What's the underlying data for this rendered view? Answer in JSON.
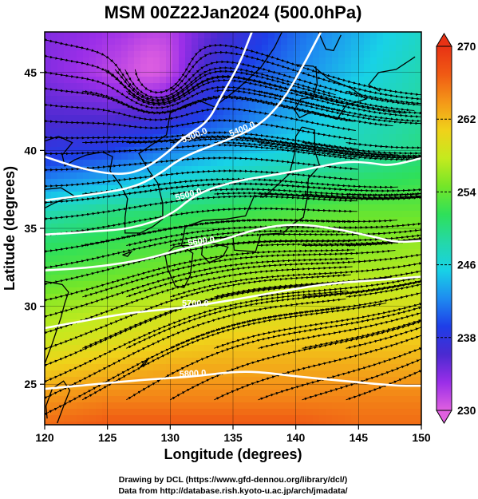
{
  "chart_data": {
    "type": "heatmap",
    "title": "MSM 00Z22Jan2024 (500.0hPa)",
    "xlabel": "Longitude (degrees)",
    "ylabel": "Latitude  (degrees)",
    "xlim": [
      120,
      150
    ],
    "ylim": [
      22.4,
      47.6
    ],
    "x_ticks": [
      120,
      125,
      130,
      135,
      140,
      145,
      150
    ],
    "x_tick_labels": [
      "120",
      "125",
      "130",
      "135",
      "140",
      "145",
      "150"
    ],
    "y_ticks": [
      25,
      30,
      35,
      40,
      45
    ],
    "y_tick_labels": [
      "25",
      "30",
      "35",
      "40",
      "45"
    ],
    "grid": true,
    "colorbar": {
      "min": 230,
      "max": 270,
      "tick_values": [
        230,
        238,
        246,
        254,
        262,
        270
      ],
      "tick_labels": [
        "230",
        "238",
        "246",
        "254",
        "262",
        "270"
      ],
      "placement": "right",
      "colors": [
        "#e060e0",
        "#9a2ee8",
        "#4a2ad0",
        "#1e3ee8",
        "#1e8cf0",
        "#18d2e6",
        "#24d8a8",
        "#2ee05a",
        "#74e628",
        "#c4ea1e",
        "#f0d21a",
        "#f49818",
        "#f05a14",
        "#e83214"
      ]
    },
    "temperature_field_K": {
      "lon": [
        120,
        125,
        130,
        135,
        140,
        145,
        150
      ],
      "lat": [
        47.5,
        45,
        42,
        40,
        38,
        36,
        34,
        32,
        30,
        28,
        26,
        24,
        22.5
      ],
      "values": [
        [
          234,
          233,
          233,
          237,
          241,
          244,
          247
        ],
        [
          234,
          232,
          234,
          239,
          242,
          245,
          248
        ],
        [
          236,
          236,
          238,
          241,
          244,
          247,
          249
        ],
        [
          238,
          239,
          242,
          244,
          246,
          248,
          250
        ],
        [
          242,
          244,
          246,
          248,
          250,
          251,
          252
        ],
        [
          248,
          250,
          251,
          252,
          253,
          254,
          254
        ],
        [
          251,
          252,
          253,
          254,
          255,
          255,
          256
        ],
        [
          253,
          254,
          255,
          256,
          257,
          257,
          257
        ],
        [
          256,
          257,
          258,
          258,
          259,
          259,
          259
        ],
        [
          258,
          259,
          260,
          261,
          261,
          261,
          261
        ],
        [
          261,
          262,
          263,
          263,
          263,
          263,
          263
        ],
        [
          264,
          265,
          265,
          265,
          265,
          265,
          265
        ],
        [
          266,
          267,
          267,
          267,
          267,
          266,
          266
        ]
      ]
    },
    "height_contours": [
      {
        "label": "5300.0",
        "points": [
          [
            120,
            39.6
          ],
          [
            123,
            38.8
          ],
          [
            126,
            38.4
          ],
          [
            128,
            38.8
          ],
          [
            130,
            40.0
          ],
          [
            131,
            40.8
          ],
          [
            133,
            41.8
          ],
          [
            134,
            43.4
          ],
          [
            135.5,
            45.5
          ],
          [
            136.5,
            47.6
          ]
        ]
      },
      {
        "label": "5400.0",
        "points": [
          [
            120,
            36.8
          ],
          [
            124,
            37.2
          ],
          [
            127,
            37.6
          ],
          [
            129,
            38.4
          ],
          [
            131,
            39.6
          ],
          [
            134,
            40.5
          ],
          [
            137,
            41.5
          ],
          [
            139,
            43.2
          ],
          [
            140.5,
            45.3
          ],
          [
            142,
            47.6
          ]
        ]
      },
      {
        "label": "5500.0",
        "points": [
          [
            120,
            34.6
          ],
          [
            124,
            34.8
          ],
          [
            127,
            35.0
          ],
          [
            130,
            35.8
          ],
          [
            132,
            37.2
          ],
          [
            135,
            38.0
          ],
          [
            138,
            38.4
          ],
          [
            141,
            38.8
          ],
          [
            144,
            39.3
          ],
          [
            146,
            39.2
          ],
          [
            147.5,
            39.0
          ],
          [
            150,
            39.5
          ]
        ]
      },
      {
        "label": "5600.0",
        "points": [
          [
            120,
            32.3
          ],
          [
            124,
            32.5
          ],
          [
            128,
            33.0
          ],
          [
            131,
            33.7
          ],
          [
            134,
            34.2
          ],
          [
            137,
            35.0
          ],
          [
            140,
            35.3
          ],
          [
            143,
            35.0
          ],
          [
            146,
            34.5
          ],
          [
            148,
            34.1
          ],
          [
            150,
            34.2
          ]
        ]
      },
      {
        "label": "5700.0",
        "points": [
          [
            120,
            28.6
          ],
          [
            124,
            29.2
          ],
          [
            127,
            29.6
          ],
          [
            131,
            29.9
          ],
          [
            135,
            30.4
          ],
          [
            139,
            31.0
          ],
          [
            143,
            31.5
          ],
          [
            147,
            31.7
          ],
          [
            150,
            31.9
          ]
        ]
      },
      {
        "label": "5800.0",
        "points": [
          [
            120,
            24.7
          ],
          [
            124,
            25.0
          ],
          [
            128,
            25.3
          ],
          [
            132,
            25.5
          ],
          [
            136,
            25.9
          ],
          [
            140,
            25.5
          ],
          [
            144,
            25.2
          ],
          [
            148,
            24.9
          ],
          [
            150,
            24.9
          ]
        ]
      }
    ],
    "contour_label_positions": [
      {
        "label": "5300.0",
        "lon": 132.0,
        "lat": 40.8,
        "angle": -22
      },
      {
        "label": "5400.0",
        "lon": 135.8,
        "lat": 41.2,
        "angle": -22
      },
      {
        "label": "5500.0",
        "lon": 131.5,
        "lat": 37.0,
        "angle": -15
      },
      {
        "label": "5600.0",
        "lon": 132.5,
        "lat": 34.0,
        "angle": -8
      },
      {
        "label": "5700.0",
        "lon": 132.0,
        "lat": 30.0,
        "angle": 0
      },
      {
        "label": "5800.0",
        "lon": 131.8,
        "lat": 25.5,
        "angle": -3
      }
    ],
    "streamline_flow": "westerly jet with cyclonic vortex near 129E 45N",
    "vortex_center": {
      "lon": 128.8,
      "lat": 45.2
    }
  },
  "credits": {
    "line1": "Drawing by DCL (https://www.gfd-dennou.org/library/dcl/)",
    "line2": "Data from http://database.rish.kyoto-u.ac.jp/arch/jmadata/"
  }
}
